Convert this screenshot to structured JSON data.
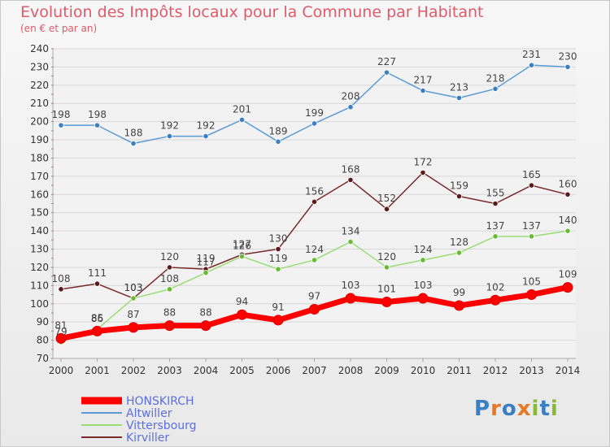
{
  "title": "Evolution des Impôts locaux pour la Commune par Habitant",
  "subtitle": "(en € et par an)",
  "logo": "Proxiti",
  "colors": {
    "title": "#e05a6a",
    "grid": "#d8d8d8",
    "axis": "#aaaaaa"
  },
  "chart_data": {
    "type": "line",
    "x": [
      "2000",
      "2001",
      "2002",
      "2003",
      "2004",
      "2005",
      "2006",
      "2007",
      "2008",
      "2009",
      "2010",
      "2011",
      "2012",
      "2013",
      "2014"
    ],
    "ylim": [
      70,
      240
    ],
    "yticks": [
      70,
      80,
      90,
      100,
      110,
      120,
      130,
      140,
      150,
      160,
      170,
      180,
      190,
      200,
      210,
      220,
      230,
      240
    ],
    "grid": "horizontal",
    "legend": "bottom-left",
    "series": [
      {
        "name": "Altwiller",
        "color": "#5b9bd5",
        "marker": "#3a7fc1",
        "values": [
          198,
          198,
          188,
          192,
          192,
          201,
          189,
          199,
          208,
          227,
          217,
          213,
          218,
          231,
          230
        ]
      },
      {
        "name": "Kirviller",
        "color": "#7a2a2a",
        "marker": "#5a1a1a",
        "values": [
          108,
          111,
          103,
          120,
          119,
          127,
          130,
          156,
          168,
          152,
          172,
          159,
          155,
          165,
          160
        ]
      },
      {
        "name": "Vittersbourg",
        "color": "#99dd77",
        "marker": "#66bb33",
        "values": [
          79,
          86,
          103,
          108,
          117,
          126,
          119,
          124,
          134,
          120,
          124,
          128,
          137,
          137,
          140
        ]
      },
      {
        "name": "HONSKIRCH",
        "color": "#ff0000",
        "marker": "#ff0000",
        "values": [
          81,
          85,
          87,
          88,
          88,
          94,
          91,
          97,
          103,
          101,
          103,
          99,
          102,
          105,
          109
        ]
      }
    ],
    "legend_order": [
      "HONSKIRCH",
      "Altwiller",
      "Vittersbourg",
      "Kirviller"
    ]
  }
}
